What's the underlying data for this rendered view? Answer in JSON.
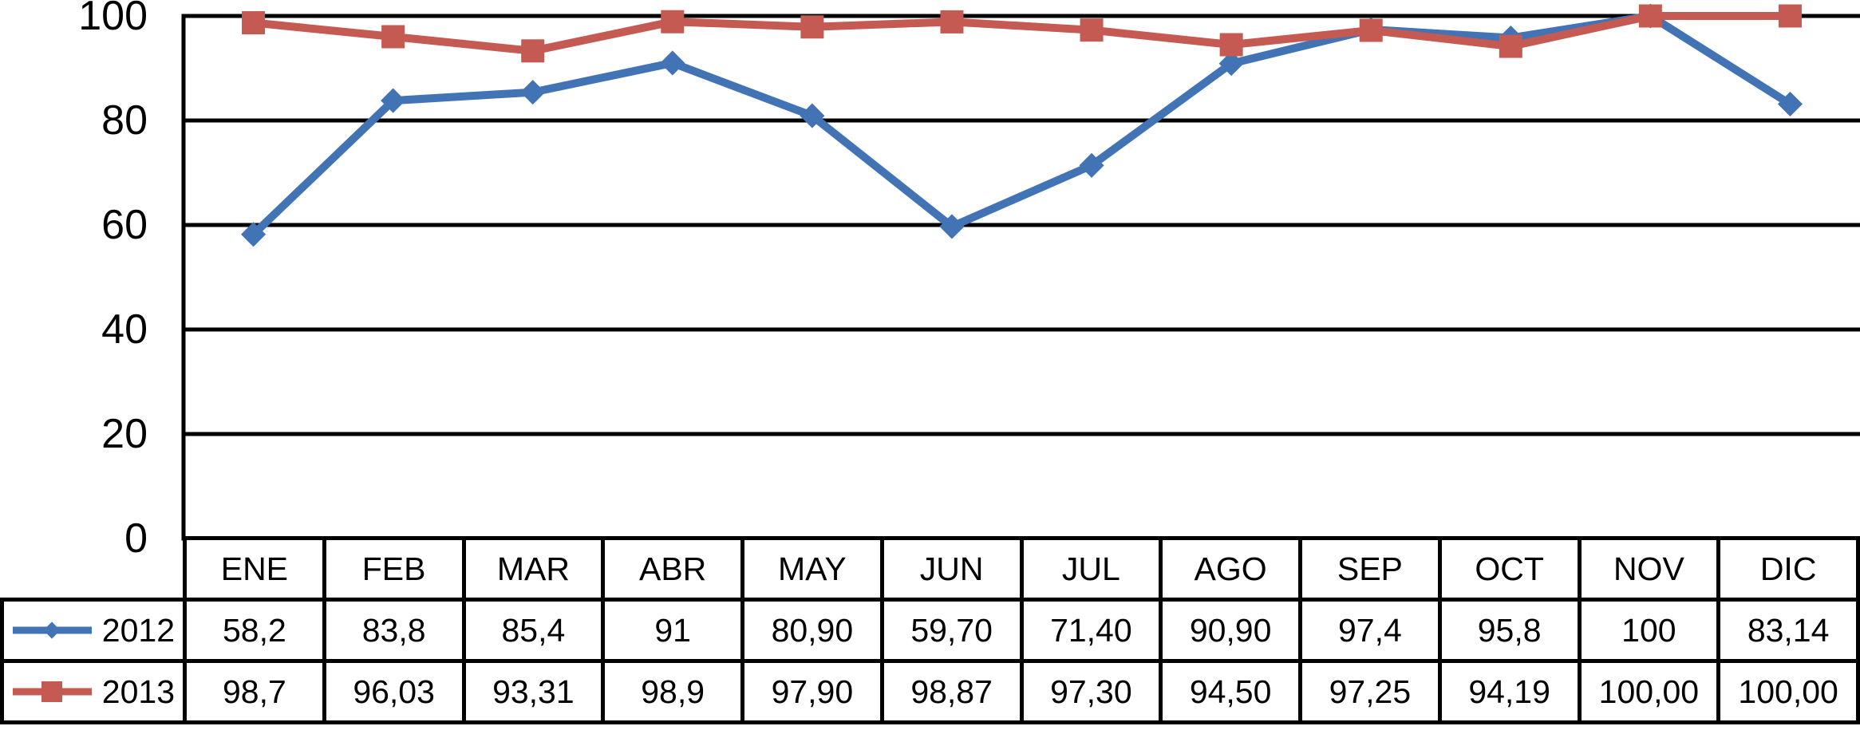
{
  "chart_data": {
    "type": "line",
    "title": "",
    "xlabel": "",
    "ylabel": "",
    "categories": [
      "ENE",
      "FEB",
      "MAR",
      "ABR",
      "MAY",
      "JUN",
      "JUL",
      "AGO",
      "SEP",
      "OCT",
      "NOV",
      "DIC"
    ],
    "series": [
      {
        "name": "2012",
        "color": "#4173B5",
        "marker": "diamond",
        "values": [
          58.2,
          83.8,
          85.4,
          91,
          80.9,
          59.7,
          71.4,
          90.9,
          97.4,
          95.8,
          100,
          83.14
        ],
        "display": [
          "58,2",
          "83,8",
          "85,4",
          "91",
          "80,90",
          "59,70",
          "71,40",
          "90,90",
          "97,4",
          "95,8",
          "100",
          "83,14"
        ]
      },
      {
        "name": "2013",
        "color": "#C45A52",
        "marker": "square",
        "values": [
          98.7,
          96.03,
          93.31,
          98.9,
          97.9,
          98.87,
          97.3,
          94.5,
          97.25,
          94.19,
          100,
          100
        ],
        "display": [
          "98,7",
          "96,03",
          "93,31",
          "98,9",
          "97,90",
          "98,87",
          "97,30",
          "94,50",
          "97,25",
          "94,19",
          "100,00",
          "100,00"
        ]
      }
    ],
    "ylim": [
      0,
      100
    ],
    "yticks": [
      0,
      20,
      40,
      60,
      80,
      100
    ],
    "ytick_labels": [
      "0",
      "20",
      "40",
      "60",
      "80",
      "100"
    ],
    "grid": true,
    "gridline_color": "#000000",
    "legend_position": "table-left"
  }
}
